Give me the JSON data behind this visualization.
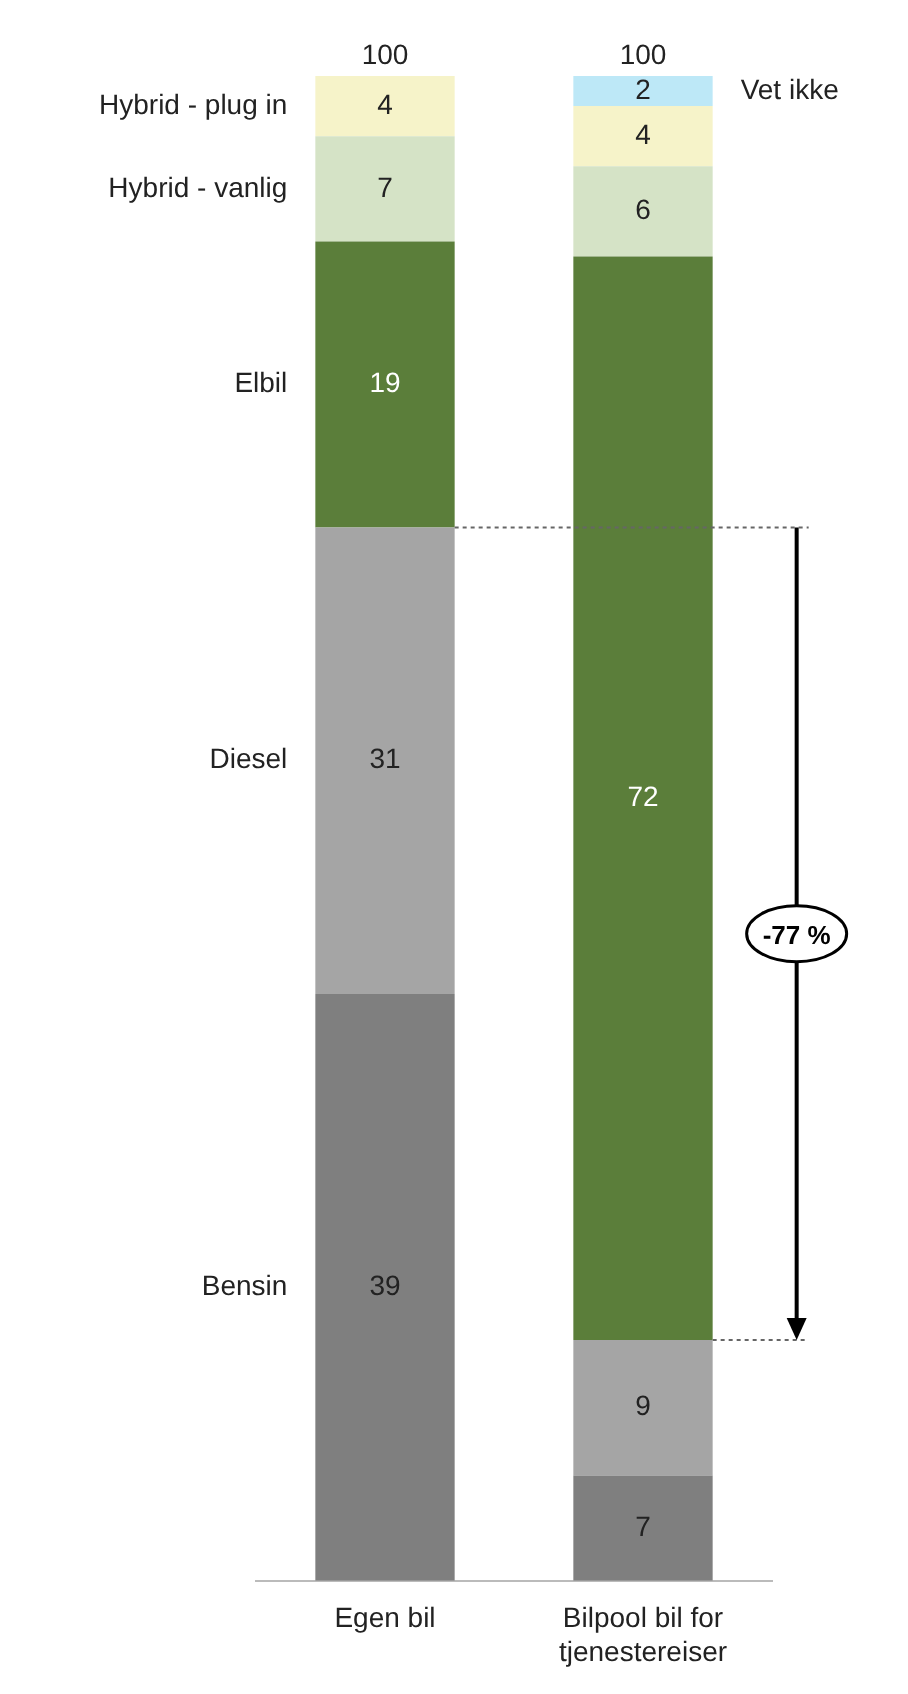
{
  "chart_data": {
    "type": "bar",
    "stacked": true,
    "categories": [
      "Egen bil",
      "Bilpool bil for tjenestereiser"
    ],
    "series": [
      {
        "name": "Bensin",
        "color": "#7f7f7f",
        "values": [
          39,
          7
        ]
      },
      {
        "name": "Diesel",
        "color": "#a5a5a5",
        "values": [
          31,
          9
        ]
      },
      {
        "name": "Elbil",
        "color": "#5b7e3a",
        "values": [
          19,
          72
        ]
      },
      {
        "name": "Hybrid - vanlig",
        "color": "#d5e3c6",
        "values": [
          7,
          6
        ]
      },
      {
        "name": "Hybrid - plug in",
        "color": "#f6f3c9",
        "values": [
          4,
          4
        ]
      },
      {
        "name": "Vet ikke",
        "color": "#bde8f7",
        "values": [
          null,
          2
        ]
      }
    ],
    "totals": [
      "100",
      "100"
    ],
    "data_labels": true,
    "grid": false,
    "legend": false,
    "annotations": [
      "-77 %"
    ],
    "ref_lines": [
      {
        "axis": "y",
        "value": 70,
        "line_style": "dotted",
        "color": "#666666"
      },
      {
        "axis": "y",
        "value": 16,
        "line_style": "dotted",
        "color": "#666666"
      }
    ]
  }
}
